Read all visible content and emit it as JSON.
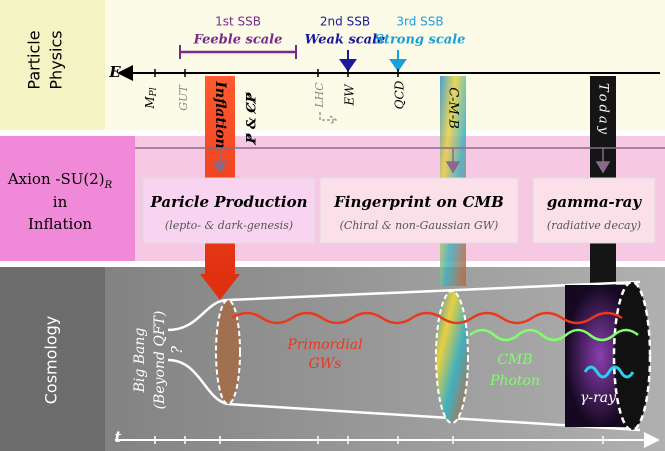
{
  "particle_physics": {
    "label_line1": "Particle",
    "label_line2": "Physics",
    "ssb": [
      {
        "label": "1st SSB",
        "scale": "Feeble scale"
      },
      {
        "label": "2nd SSB",
        "scale": "Weak scale"
      },
      {
        "label": "3rd SSB",
        "scale": "Strong scale"
      }
    ],
    "axis_label": "E",
    "energy_marks": {
      "mpl_main": "M",
      "mpl_sub": "Pl",
      "gut": "GUT",
      "lhc": "LHC",
      "ew": "EW",
      "qcd": "QCD",
      "cmb": "C-M-B",
      "today": "Today"
    },
    "inflation": "Inflation",
    "cp": "P̸ & C̸P̸"
  },
  "axion": {
    "label_line1": "Axion -SU(2)",
    "label_sub": "R",
    "label_line2": "in",
    "label_line3": "Inflation",
    "boxes": [
      {
        "title": "Paricle Production",
        "subtitle": "(lepto- & dark-genesis)"
      },
      {
        "title": "Fingerprint on CMB",
        "subtitle": "(Chiral & non-Gaussian GW)"
      },
      {
        "title": "gamma-ray",
        "subtitle": "(radiative decay)"
      }
    ]
  },
  "cosmology": {
    "label": "Cosmology",
    "big_bang_line1": "Big Bang",
    "big_bang_line2": "(Beyond QFT)",
    "question": "?",
    "gw_line1": "Primordial",
    "gw_line2": "GWs",
    "cmb_line1": "CMB",
    "cmb_line2": "Photon",
    "gamma": "γ-ray",
    "axis_label": "t"
  }
}
